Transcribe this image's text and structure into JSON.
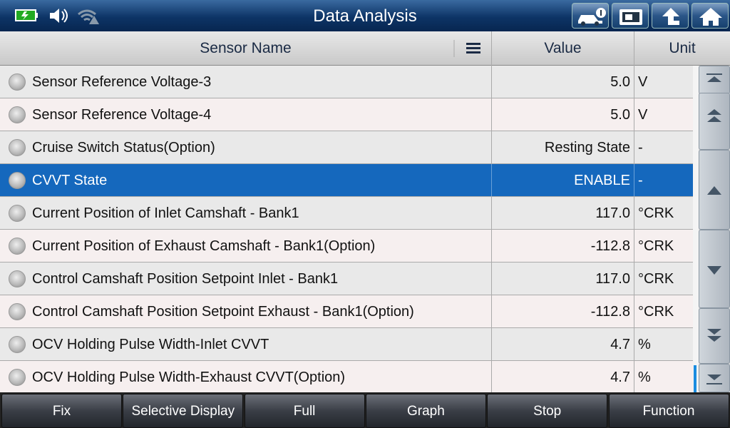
{
  "header": {
    "title": "Data Analysis"
  },
  "table": {
    "columns": [
      "Sensor Name",
      "Value",
      "Unit"
    ],
    "selected_row": 3,
    "rows": [
      [
        "Sensor Reference Voltage-3",
        "5.0",
        "V"
      ],
      [
        "Sensor Reference Voltage-4",
        "5.0",
        "V"
      ],
      [
        "Cruise Switch Status(Option)",
        "Resting State",
        "-"
      ],
      [
        "CVVT State",
        "ENABLE",
        "-"
      ],
      [
        "Current Position of Inlet Camshaft - Bank1",
        "117.0",
        "°CRK"
      ],
      [
        "Current Position of Exhaust Camshaft - Bank1(Option)",
        "-112.8",
        "°CRK"
      ],
      [
        "Control Camshaft Position Setpoint Inlet - Bank1",
        "117.0",
        "°CRK"
      ],
      [
        "Control Camshaft Position Setpoint Exhaust - Bank1(Option)",
        "-112.8",
        "°CRK"
      ],
      [
        "OCV Holding Pulse Width-Inlet CVVT",
        "4.7",
        "%"
      ],
      [
        "OCV Holding Pulse Width-Exhaust CVVT(Option)",
        "4.7",
        "%"
      ]
    ]
  },
  "footer": {
    "buttons": [
      "Fix",
      "Selective Display",
      "Full",
      "Graph",
      "Stop",
      "Function"
    ]
  }
}
